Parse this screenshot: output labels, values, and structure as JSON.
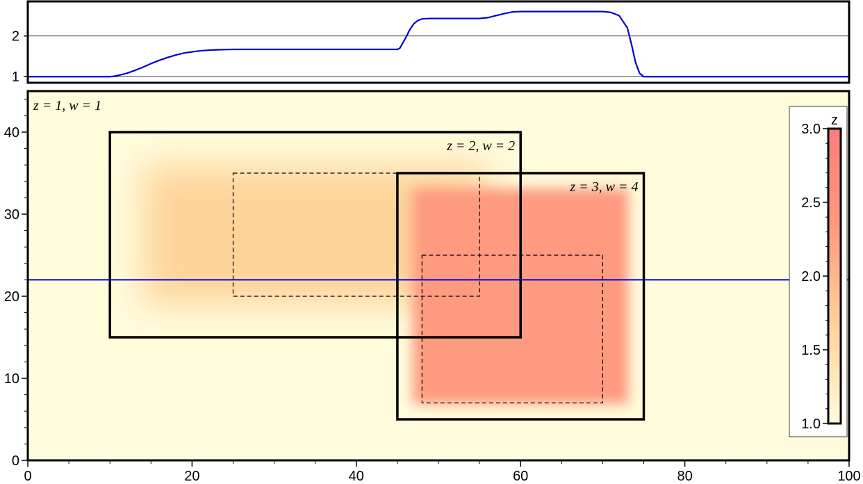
{
  "chart_data": [
    {
      "type": "line",
      "panel": "profile",
      "x_range": [
        0,
        100
      ],
      "ylim": [
        0.85,
        2.85
      ],
      "yticks": [
        1,
        2
      ],
      "grid_y": [
        1,
        2
      ],
      "series": [
        {
          "color": "#0000dd",
          "x": [
            0,
            10,
            10.5,
            11,
            12,
            13,
            14,
            15,
            16,
            17,
            18,
            19,
            20,
            21,
            22,
            23,
            24,
            25,
            30,
            35,
            40,
            45,
            45.3,
            46,
            46.5,
            47,
            47.5,
            48,
            49,
            50,
            52,
            54,
            55,
            56,
            57,
            58,
            59,
            60,
            62,
            65,
            68,
            70,
            71,
            72,
            73,
            73.5,
            74,
            74.5,
            75,
            75.5,
            80,
            90,
            100
          ],
          "values": [
            1,
            1,
            1.01,
            1.03,
            1.08,
            1.15,
            1.23,
            1.32,
            1.4,
            1.47,
            1.53,
            1.58,
            1.61,
            1.635,
            1.65,
            1.66,
            1.665,
            1.67,
            1.67,
            1.67,
            1.67,
            1.67,
            1.7,
            1.95,
            2.15,
            2.3,
            2.38,
            2.42,
            2.43,
            2.43,
            2.43,
            2.43,
            2.43,
            2.45,
            2.5,
            2.55,
            2.59,
            2.6,
            2.6,
            2.6,
            2.6,
            2.6,
            2.58,
            2.5,
            2.2,
            1.8,
            1.35,
            1.08,
            1.0,
            1.0,
            1.0,
            1.0,
            1.0
          ]
        }
      ]
    },
    {
      "type": "heatmap",
      "panel": "map",
      "xlim": [
        0,
        100
      ],
      "ylim": [
        0,
        45
      ],
      "xticks": [
        0,
        20,
        40,
        60,
        80,
        100
      ],
      "yticks": [
        0,
        10,
        20,
        30,
        40
      ],
      "background": "#fffcdc",
      "rectangles": [
        {
          "z": 2,
          "w": 2,
          "outer": [
            10,
            60,
            15,
            40
          ],
          "inner": [
            25,
            55,
            20,
            35
          ],
          "fill": "#fed39a"
        },
        {
          "z": 3,
          "w": 4,
          "outer": [
            45,
            75,
            5,
            35
          ],
          "inner": [
            48,
            70,
            7,
            25
          ],
          "fill": "#fe9a80"
        }
      ],
      "track_line_y": 22,
      "track_color": "#0000dd",
      "labels": [
        {
          "text": "z = 1, w = 1",
          "anchor": "start"
        },
        {
          "text": "z = 2, w = 2",
          "anchor": "end"
        },
        {
          "text": "z = 3, w = 4",
          "anchor": "end"
        }
      ],
      "colorbar": {
        "title": "z",
        "ticks": [
          "1.0",
          "1.5",
          "2.0",
          "2.5",
          "3.0"
        ],
        "tick_values": [
          1.0,
          1.5,
          2.0,
          2.5,
          3.0
        ],
        "range": [
          1.0,
          3.0
        ],
        "colors": [
          "#fffcdc",
          "#fed39a",
          "#fe9a80",
          "#fd7d7d"
        ]
      }
    }
  ]
}
